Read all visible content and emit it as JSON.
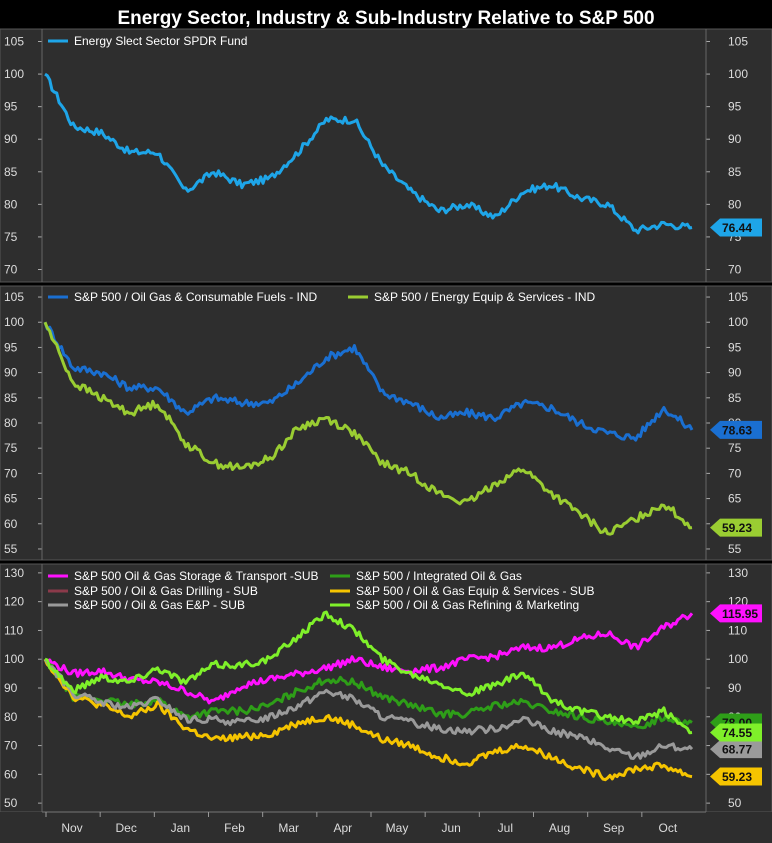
{
  "title": "Energy Sector, Industry & Sub-Industry Relative to S&P 500",
  "months": [
    "Nov",
    "Dec",
    "Jan",
    "Feb",
    "Mar",
    "Apr",
    "May",
    "Jun",
    "Jul",
    "Aug",
    "Sep",
    "Oct"
  ],
  "chart_data": [
    {
      "type": "line",
      "panel": "top",
      "ylim": [
        69,
        106
      ],
      "yticks": [
        70,
        75,
        80,
        85,
        90,
        95,
        100,
        105
      ],
      "legend": "top-left",
      "grid": false,
      "series": [
        {
          "name": "Energy Slect Sector SPDR Fund",
          "color": "#1ea5e8",
          "last_label": "76.44",
          "points": [
            100,
            92,
            91,
            88,
            88,
            82,
            85,
            83,
            84,
            88,
            93,
            93,
            86,
            82,
            79,
            80,
            78,
            82,
            83,
            81,
            80,
            76,
            77,
            76.44
          ]
        }
      ]
    },
    {
      "type": "line",
      "panel": "middle",
      "ylim": [
        54,
        106
      ],
      "yticks": [
        55,
        60,
        65,
        70,
        75,
        80,
        85,
        90,
        95,
        100,
        105
      ],
      "legend": "top",
      "grid": false,
      "series": [
        {
          "name": "S&P 500 / Oil Gas & Consumable Fuels - IND",
          "color": "#1a6fd1",
          "last_label": "78.63",
          "points": [
            100,
            91,
            90,
            87,
            87,
            82,
            85,
            84,
            84,
            88,
            93,
            95,
            86,
            84,
            81,
            82,
            81,
            84,
            83,
            80,
            78,
            77,
            83,
            78.63
          ]
        },
        {
          "name": "S&P 500 / Energy Equip & Services - IND",
          "color": "#9acd32",
          "last_label": "59.23",
          "points": [
            100,
            88,
            85,
            82,
            84,
            76,
            72,
            71,
            73,
            79,
            81,
            78,
            72,
            70,
            66,
            64,
            68,
            71,
            66,
            62,
            58,
            61,
            64,
            59.23
          ]
        }
      ]
    },
    {
      "type": "line",
      "panel": "bottom",
      "ylim": [
        49,
        131
      ],
      "yticks": [
        50,
        60,
        70,
        80,
        90,
        100,
        110,
        120,
        130
      ],
      "legend": "top",
      "grid": false,
      "series": [
        {
          "name": "S&P 500 Oil & Gas Storage & Transport -SUB",
          "color": "#ff10ff",
          "last_label": "115.95",
          "points": [
            100,
            95,
            96,
            93,
            92,
            89,
            85,
            91,
            93,
            95,
            97,
            100,
            97,
            96,
            97,
            100,
            101,
            104,
            104,
            107,
            109,
            104,
            111,
            115.95
          ]
        },
        {
          "name": "S&P 500 / Integrated Oil & Gas",
          "color": "#2e9e18",
          "last_label": "78.00",
          "points": [
            100,
            87,
            86,
            84,
            86,
            80,
            82,
            82,
            84,
            89,
            93,
            92,
            87,
            84,
            81,
            81,
            84,
            85,
            82,
            80,
            78,
            76,
            80,
            78.0
          ]
        },
        {
          "name": "S&P 500 / Oil & Gas Drilling - SUB",
          "color": "#8b3a4a",
          "last_label": "",
          "points": []
        },
        {
          "name": "S&P 500 / Oil & Gas Equip & Services - SUB",
          "color": "#f5c400",
          "last_label": "59.23",
          "points": [
            100,
            87,
            84,
            80,
            84,
            76,
            72,
            73,
            74,
            78,
            80,
            77,
            72,
            70,
            66,
            64,
            68,
            70,
            66,
            62,
            59,
            62,
            63,
            59.23
          ]
        },
        {
          "name": "S&P 500 / Oil & Gas E&P -  SUB",
          "color": "#9a9a9a",
          "last_label": "68.77",
          "points": [
            100,
            88,
            85,
            83,
            86,
            79,
            79,
            78,
            80,
            84,
            89,
            86,
            80,
            78,
            76,
            75,
            76,
            79,
            75,
            73,
            69,
            66,
            70,
            68.77
          ]
        },
        {
          "name": "S&P 500 / Oil & Gas Refining & Marketing",
          "color": "#7ff02a",
          "last_label": "74.55",
          "points": [
            100,
            89,
            94,
            92,
            97,
            92,
            98,
            98,
            100,
            108,
            116,
            110,
            100,
            95,
            92,
            88,
            91,
            95,
            86,
            82,
            80,
            78,
            82,
            74.55
          ]
        }
      ]
    }
  ]
}
